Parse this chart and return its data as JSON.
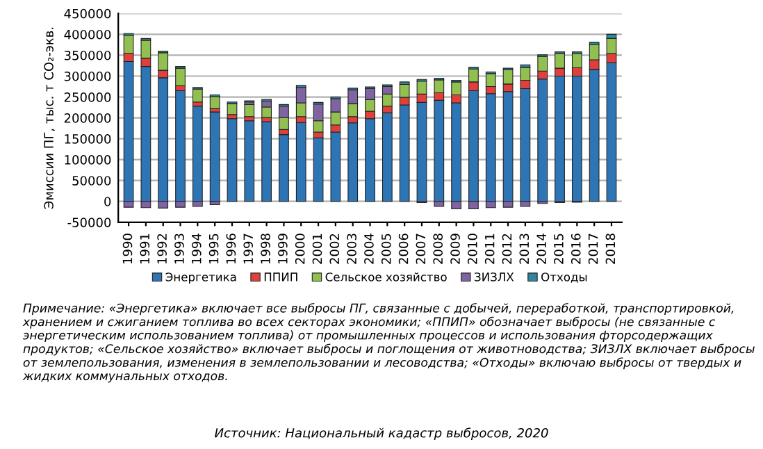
{
  "chart_data": {
    "type": "bar",
    "stacked": true,
    "ylabel": "Эмиссии ПГ, тыс. т CO₂-экв.",
    "categories": [
      "1990",
      "1991",
      "1992",
      "1993",
      "1994",
      "1995",
      "1996",
      "1997",
      "1998",
      "1999",
      "2000",
      "2001",
      "2002",
      "2003",
      "2004",
      "2005",
      "2006",
      "2007",
      "2008",
      "2009",
      "2010",
      "2011",
      "2012",
      "2013",
      "2014",
      "2015",
      "2016",
      "2017",
      "2018"
    ],
    "series": [
      {
        "name": "Энергетика",
        "color": "#2e75b6",
        "values": [
          335000,
          323000,
          296000,
          265000,
          228000,
          214000,
          198000,
          193000,
          191000,
          160000,
          189000,
          152000,
          166000,
          188000,
          198000,
          212000,
          231000,
          237000,
          242000,
          236000,
          265000,
          258000,
          263000,
          270000,
          293000,
          300000,
          300000,
          316000,
          332000
        ]
      },
      {
        "name": "ППИП",
        "color": "#e0403b",
        "values": [
          20000,
          20000,
          18000,
          12000,
          10000,
          8000,
          10000,
          10000,
          10000,
          12000,
          14000,
          14000,
          17000,
          15000,
          18000,
          16000,
          18000,
          20000,
          18000,
          19000,
          21000,
          17000,
          18000,
          20000,
          19000,
          19000,
          20000,
          23000,
          22000
        ]
      },
      {
        "name": "Сельское хозяйство",
        "color": "#92c050",
        "values": [
          43000,
          43000,
          42000,
          42000,
          31000,
          29000,
          26000,
          29000,
          25000,
          29000,
          33000,
          27000,
          31000,
          31000,
          28000,
          29000,
          31000,
          31000,
          31000,
          31000,
          31000,
          31000,
          34000,
          31000,
          35000,
          35000,
          34000,
          36000,
          36000
        ]
      },
      {
        "name": "ЗИЗЛХ",
        "color": "#8064a2",
        "values": [
          -14000,
          -15000,
          -16000,
          -14000,
          -12000,
          -8000,
          0,
          6000,
          14000,
          27000,
          37000,
          40000,
          32000,
          33000,
          26000,
          18000,
          0,
          -3000,
          -12000,
          -18000,
          -18000,
          -15000,
          -14000,
          -12000,
          -5000,
          -3000,
          -2000,
          0,
          0
        ]
      },
      {
        "name": "Отходы",
        "color": "#31859c",
        "values": [
          4000,
          4000,
          4000,
          4000,
          4000,
          4000,
          4000,
          3000,
          4000,
          4000,
          5000,
          4000,
          4000,
          4000,
          4000,
          4000,
          6000,
          4000,
          4000,
          4000,
          4000,
          4000,
          4000,
          6000,
          4000,
          4000,
          4000,
          6000,
          10000
        ]
      }
    ],
    "ylim": [
      -50000,
      450000
    ],
    "yticks": [
      -50000,
      0,
      50000,
      100000,
      150000,
      200000,
      250000,
      300000,
      350000,
      400000,
      450000
    ],
    "grid": "y",
    "legend": "bottom",
    "annotations": [
      "Примечание: «Энергетика» включает все выбросы ПГ, связанные с добычей, переработкой, транспортировкой, хранением и сжиганием топлива во всех секторах экономики; «ППИП» обозначает выбросы (не связанные с энергетическим использованием топлива) от промышленных процессов и использования фторсодержащих продуктов; «Сельское хозяйство» включает выбросы и поглощения от животноводства; ЗИЗЛХ включает выбросы от землепользования, изменения в землепользовании и лесоводства; «Отходы» включаю выбросы от твердых и жидких коммунальных отходов.",
      "Источник: Национальный кадастр выбросов, 2020"
    ]
  }
}
